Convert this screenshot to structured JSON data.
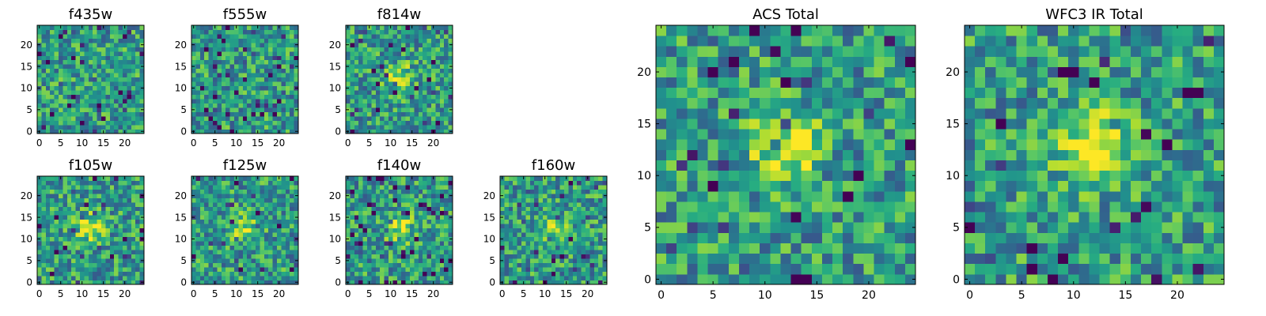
{
  "chart_data": [
    {
      "type": "heatmap",
      "title": "f435w",
      "xlim": [
        0,
        24
      ],
      "ylim": [
        0,
        24
      ],
      "xticks": [
        0,
        5,
        10,
        15,
        20
      ],
      "yticks": [
        0,
        5,
        10,
        15,
        20
      ],
      "colormap": "viridis",
      "grid": false,
      "center_blob": 0.0,
      "seed": 11
    },
    {
      "type": "heatmap",
      "title": "f555w",
      "xlim": [
        0,
        24
      ],
      "ylim": [
        0,
        24
      ],
      "xticks": [
        0,
        5,
        10,
        15,
        20
      ],
      "yticks": [
        0,
        5,
        10,
        15,
        20
      ],
      "colormap": "viridis",
      "grid": false,
      "center_blob": 0.0,
      "seed": 23
    },
    {
      "type": "heatmap",
      "title": "f814w",
      "xlim": [
        0,
        24
      ],
      "ylim": [
        0,
        24
      ],
      "xticks": [
        0,
        5,
        10,
        15,
        20
      ],
      "yticks": [
        0,
        5,
        10,
        15,
        20
      ],
      "colormap": "viridis",
      "grid": false,
      "center_blob": 0.35,
      "seed": 37
    },
    {
      "type": "heatmap",
      "title": "f105w",
      "xlim": [
        0,
        24
      ],
      "ylim": [
        0,
        24
      ],
      "xticks": [
        0,
        5,
        10,
        15,
        20
      ],
      "yticks": [
        0,
        5,
        10,
        15,
        20
      ],
      "colormap": "viridis",
      "grid": false,
      "center_blob": 0.4,
      "seed": 41
    },
    {
      "type": "heatmap",
      "title": "f125w",
      "xlim": [
        0,
        24
      ],
      "ylim": [
        0,
        24
      ],
      "xticks": [
        0,
        5,
        10,
        15,
        20
      ],
      "yticks": [
        0,
        5,
        10,
        15,
        20
      ],
      "colormap": "viridis",
      "grid": false,
      "center_blob": 0.3,
      "seed": 53
    },
    {
      "type": "heatmap",
      "title": "f140w",
      "xlim": [
        0,
        24
      ],
      "ylim": [
        0,
        24
      ],
      "xticks": [
        0,
        5,
        10,
        15,
        20
      ],
      "yticks": [
        0,
        5,
        10,
        15,
        20
      ],
      "colormap": "viridis",
      "grid": false,
      "center_blob": 0.35,
      "seed": 67
    },
    {
      "type": "heatmap",
      "title": "f160w",
      "xlim": [
        0,
        24
      ],
      "ylim": [
        0,
        24
      ],
      "xticks": [
        0,
        5,
        10,
        15,
        20
      ],
      "yticks": [
        0,
        5,
        10,
        15,
        20
      ],
      "colormap": "viridis",
      "grid": false,
      "center_blob": 0.3,
      "seed": 79
    },
    {
      "type": "heatmap",
      "title": "ACS Total",
      "xlim": [
        0,
        24
      ],
      "ylim": [
        0,
        24
      ],
      "xticks": [
        0,
        5,
        10,
        15,
        20
      ],
      "yticks": [
        0,
        5,
        10,
        15,
        20
      ],
      "colormap": "viridis",
      "grid": false,
      "center_blob": 0.45,
      "seed": 97
    },
    {
      "type": "heatmap",
      "title": "WFC3 IR Total",
      "xlim": [
        0,
        24
      ],
      "ylim": [
        0,
        24
      ],
      "xticks": [
        0,
        5,
        10,
        15,
        20
      ],
      "yticks": [
        0,
        5,
        10,
        15,
        20
      ],
      "colormap": "viridis",
      "grid": false,
      "center_blob": 0.6,
      "seed": 113
    }
  ]
}
